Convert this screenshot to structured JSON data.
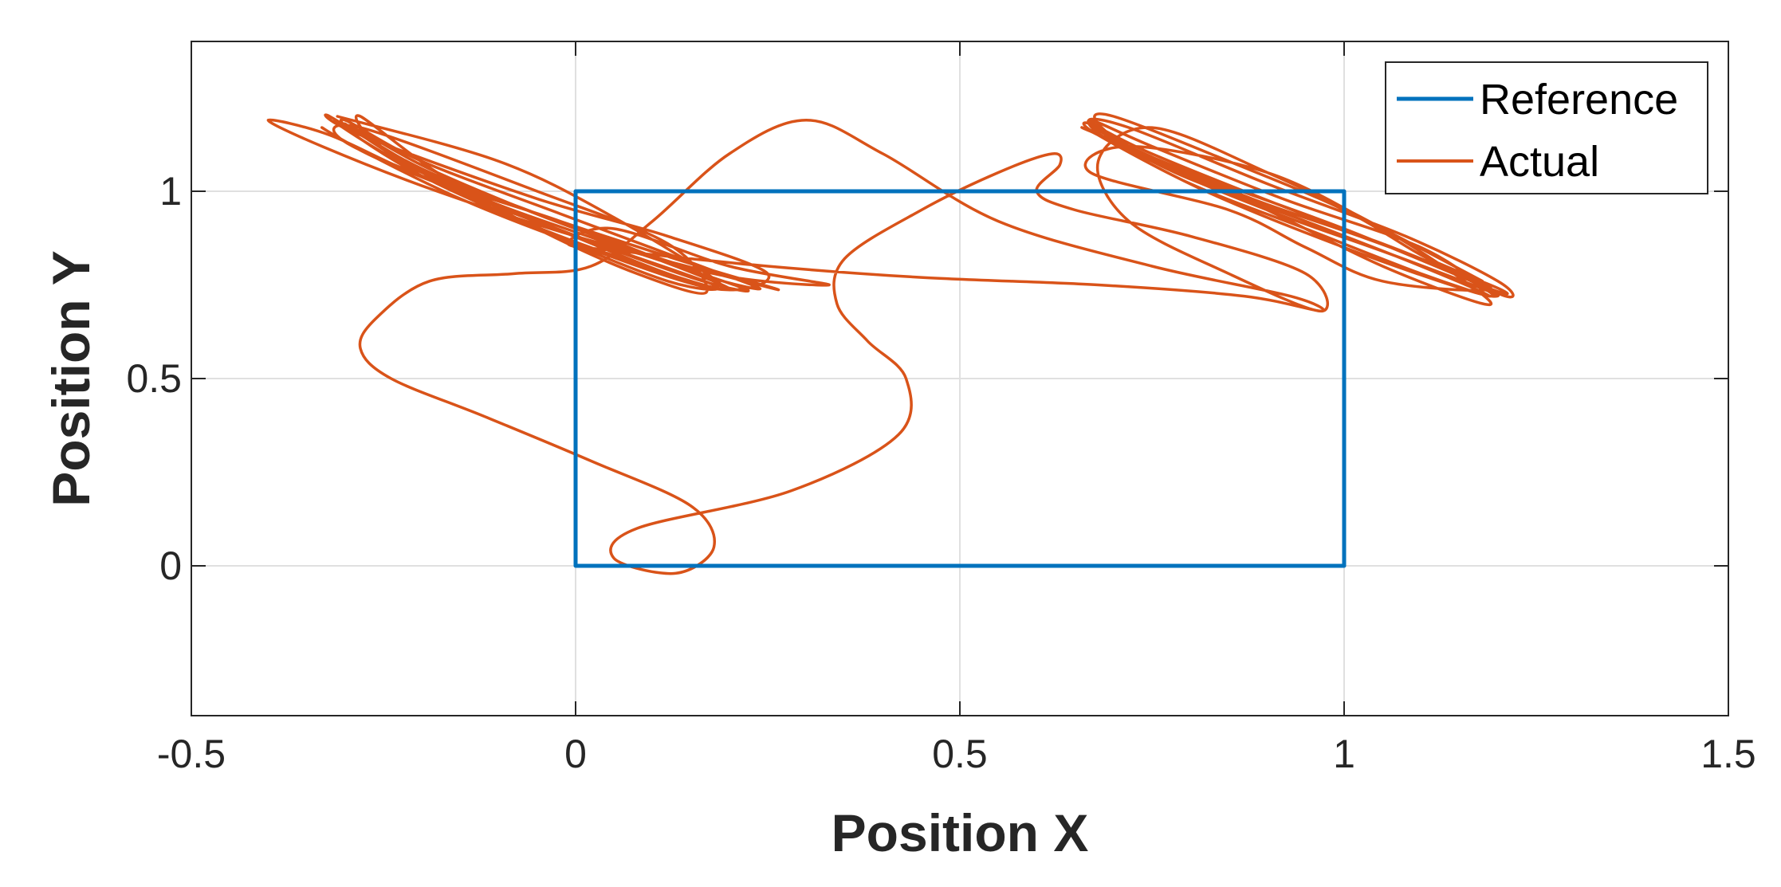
{
  "chart_data": {
    "type": "line",
    "title": "",
    "xlabel": "Position X",
    "ylabel": "Position Y",
    "xlim": [
      -0.5,
      1.5
    ],
    "ylim": [
      -0.4,
      1.4
    ],
    "xticks": [
      -0.5,
      0,
      0.5,
      1,
      1.5
    ],
    "yticks": [
      0,
      0.5,
      1
    ],
    "xtick_labels": [
      "-0.5",
      "0",
      "0.5",
      "1",
      "1.5"
    ],
    "ytick_labels": [
      "0",
      "0.5",
      "1"
    ],
    "grid": true,
    "legend_position": "top-right",
    "series": [
      {
        "name": "Reference",
        "color": "#0072BD",
        "x": [
          0,
          1,
          1,
          0,
          0
        ],
        "y": [
          0,
          0,
          1,
          1,
          0
        ]
      },
      {
        "name": "Actual",
        "color": "#D95319",
        "x": [
          -0.31,
          -0.1,
          0.05,
          0.19,
          0.12,
          -0.05,
          -0.29,
          -0.28,
          -0.05,
          0.12,
          0.17,
          0.08,
          -0.05,
          -0.18,
          -0.28,
          -0.26,
          -0.15,
          0.0,
          0.18,
          0.12,
          -0.05,
          -0.2,
          -0.3,
          -0.22,
          -0.12,
          0.03,
          0.22,
          0.15,
          -0.05,
          -0.25,
          -0.33,
          -0.27,
          -0.15,
          0.0,
          0.18,
          0.25,
          0.12,
          -0.05,
          -0.28,
          -0.32,
          -0.2,
          -0.05,
          0.13,
          0.2,
          0.15,
          -0.02,
          -0.18,
          -0.28,
          -0.3,
          -0.2,
          -0.02,
          0.15,
          0.24,
          0.16,
          -0.02,
          -0.2,
          -0.32,
          -0.4,
          -0.33,
          -0.18,
          0.0,
          0.22,
          0.26,
          0.16,
          -0.02,
          -0.2,
          -0.31,
          -0.28,
          -0.18,
          0.0,
          0.18,
          0.33,
          0.2,
          0.05,
          -0.01,
          0.06,
          0.25,
          0.45,
          0.68,
          0.87,
          0.97,
          0.93,
          0.75,
          0.55,
          0.4,
          0.3,
          0.2,
          0.1,
          0.02,
          -0.08,
          -0.19,
          -0.26,
          -0.28,
          -0.24,
          -0.12,
          0.02,
          0.15,
          0.18,
          0.13,
          0.05,
          0.08,
          0.28,
          0.42,
          0.43,
          0.38,
          0.34,
          0.35,
          0.45,
          0.55,
          0.62,
          0.63,
          0.6,
          0.65,
          0.8,
          0.95,
          0.97,
          0.85,
          0.72,
          0.68,
          0.75,
          0.9,
          1.05,
          1.17,
          1.18,
          1.05,
          0.9,
          0.72,
          0.67,
          0.72,
          0.88,
          1.05,
          1.19,
          1.17,
          1.0,
          0.82,
          0.68,
          0.67,
          0.75,
          0.92,
          1.1,
          1.21,
          1.2,
          1.08,
          0.9,
          0.72,
          0.67,
          0.78,
          0.95,
          1.1,
          1.19,
          1.1,
          0.95,
          0.8,
          0.68,
          0.67,
          0.8,
          1.0,
          1.19,
          1.19,
          1.02,
          0.85,
          0.7,
          0.67,
          0.75,
          0.92,
          1.1,
          1.19,
          1.18,
          1.05,
          0.9,
          0.75,
          0.68,
          0.7,
          0.85,
          1.0,
          1.1,
          1.19,
          1.05,
          0.95,
          0.85,
          0.67,
          0.72,
          0.9,
          1.05,
          1.18
        ],
        "y": [
          1.2,
          1.08,
          0.93,
          0.75,
          0.78,
          0.92,
          1.12,
          1.17,
          1.0,
          0.86,
          0.73,
          0.78,
          0.9,
          1.05,
          1.2,
          1.13,
          1.0,
          0.88,
          0.75,
          0.76,
          0.9,
          1.05,
          1.18,
          1.08,
          0.98,
          0.87,
          0.74,
          0.77,
          0.92,
          1.08,
          1.17,
          1.1,
          0.98,
          0.86,
          0.74,
          0.78,
          0.88,
          0.98,
          1.15,
          1.2,
          1.06,
          0.94,
          0.8,
          0.74,
          0.76,
          0.88,
          1.02,
          1.14,
          1.19,
          1.08,
          0.94,
          0.81,
          0.74,
          0.78,
          0.92,
          1.04,
          1.15,
          1.19,
          1.12,
          1.0,
          0.88,
          0.76,
          0.74,
          0.8,
          0.92,
          1.05,
          1.18,
          1.16,
          1.05,
          0.9,
          0.78,
          0.75,
          0.8,
          0.9,
          0.86,
          0.84,
          0.8,
          0.77,
          0.75,
          0.72,
          0.68,
          0.72,
          0.8,
          0.92,
          1.1,
          1.19,
          1.1,
          0.92,
          0.8,
          0.78,
          0.76,
          0.66,
          0.58,
          0.5,
          0.4,
          0.28,
          0.16,
          0.05,
          -0.02,
          0.02,
          0.1,
          0.2,
          0.35,
          0.5,
          0.6,
          0.7,
          0.82,
          0.95,
          1.05,
          1.1,
          1.07,
          1.0,
          0.95,
          0.88,
          0.78,
          0.68,
          0.78,
          0.92,
          1.08,
          1.17,
          1.05,
          0.9,
          0.74,
          0.7,
          0.8,
          0.95,
          1.12,
          1.19,
          1.12,
          0.98,
          0.86,
          0.74,
          0.73,
          0.85,
          1.0,
          1.15,
          1.18,
          1.1,
          0.96,
          0.82,
          0.72,
          0.76,
          0.88,
          1.02,
          1.17,
          1.18,
          1.05,
          0.92,
          0.8,
          0.72,
          0.78,
          0.9,
          1.02,
          1.15,
          1.16,
          1.05,
          0.9,
          0.74,
          0.75,
          0.88,
          1.0,
          1.13,
          1.19,
          1.12,
          0.98,
          0.85,
          0.73,
          0.74,
          0.84,
          0.95,
          1.08,
          1.18,
          1.2,
          1.08,
          0.95,
          0.83,
          0.74,
          0.76,
          0.85,
          0.95,
          1.05,
          1.12,
          1.05,
          0.9,
          0.76
        ]
      }
    ]
  }
}
